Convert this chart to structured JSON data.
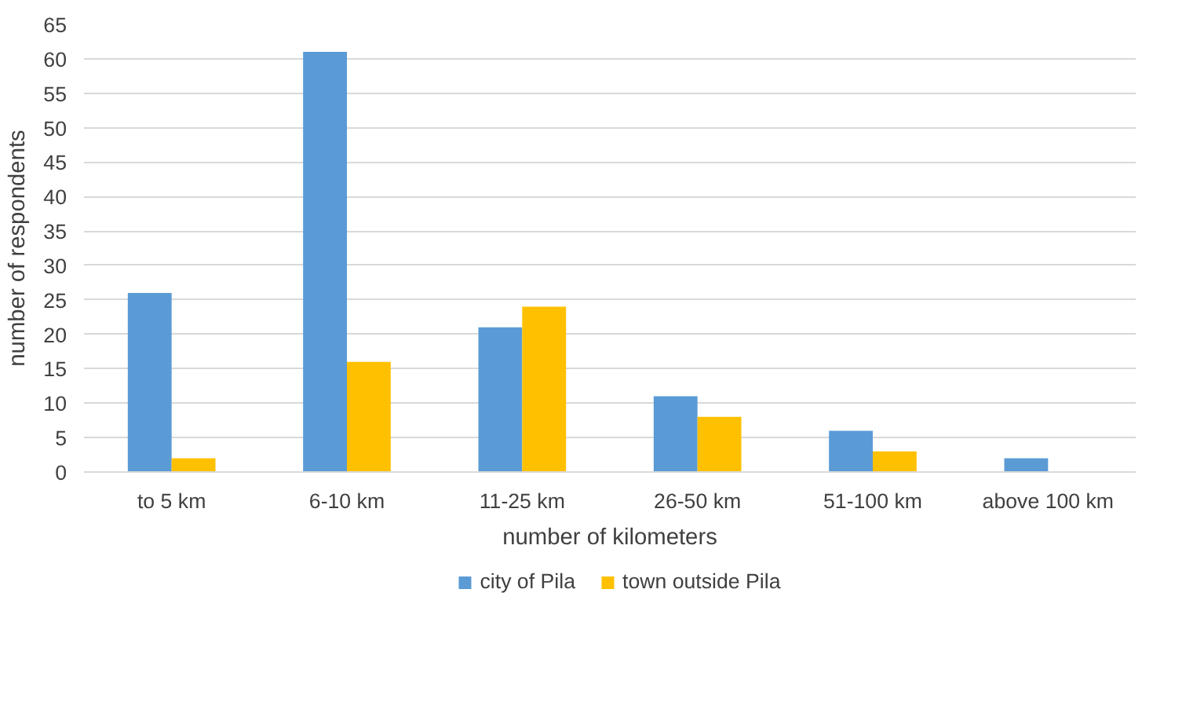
{
  "chart_data": {
    "type": "bar",
    "xlabel": "number of kilometers",
    "ylabel": "number of respondents",
    "categories": [
      "to 5 km",
      "6-10 km",
      "11-25 km",
      "26-50 km",
      "51-100 km",
      "above 100 km"
    ],
    "series": [
      {
        "name": "city of Pila",
        "color": "#5b9bd5",
        "values": [
          26,
          61,
          21,
          11,
          6,
          2
        ]
      },
      {
        "name": "town outside Pila",
        "color": "#ffc000",
        "values": [
          2,
          16,
          24,
          8,
          3,
          0
        ]
      }
    ],
    "ylim": [
      0,
      65
    ],
    "yticks": [
      0,
      5,
      10,
      15,
      20,
      25,
      30,
      35,
      40,
      45,
      50,
      55,
      60,
      65
    ],
    "grid": "y",
    "legend": "bottom"
  }
}
